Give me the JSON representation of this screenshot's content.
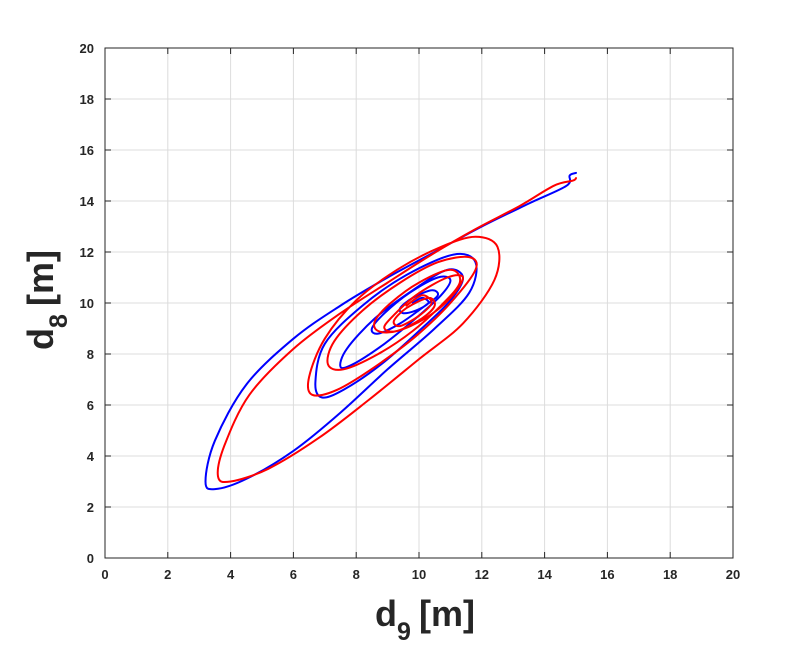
{
  "chart_data": {
    "type": "line",
    "title": "",
    "xlabel": {
      "base": "d",
      "sub": "9",
      "unit": "[m]"
    },
    "ylabel": {
      "base": "d",
      "sub": "8",
      "unit": "[m]"
    },
    "xlim": [
      0,
      20
    ],
    "ylim": [
      0,
      20
    ],
    "xticks": [
      "0",
      "2",
      "4",
      "6",
      "8",
      "10",
      "12",
      "14",
      "16",
      "18",
      "20"
    ],
    "yticks": [
      "0",
      "2",
      "4",
      "6",
      "8",
      "10",
      "12",
      "14",
      "16",
      "18",
      "20"
    ],
    "grid": true,
    "legend": "none",
    "series": [
      {
        "color": "#0000ff",
        "points": [
          [
            15.0,
            15.1
          ],
          [
            14.8,
            15.0
          ],
          [
            14.7,
            14.6
          ],
          [
            13.5,
            13.9
          ],
          [
            12.0,
            13.0
          ],
          [
            10.5,
            12.0
          ],
          [
            9.0,
            11.0
          ],
          [
            7.5,
            9.9
          ],
          [
            6.0,
            8.6
          ],
          [
            4.5,
            6.8
          ],
          [
            3.5,
            4.6
          ],
          [
            3.2,
            3.0
          ],
          [
            3.5,
            2.7
          ],
          [
            4.5,
            3.1
          ],
          [
            6.0,
            4.2
          ],
          [
            7.5,
            5.7
          ],
          [
            9.0,
            7.4
          ],
          [
            10.5,
            9.0
          ],
          [
            11.6,
            10.4
          ],
          [
            11.8,
            11.6
          ],
          [
            11.1,
            11.9
          ],
          [
            9.6,
            11.1
          ],
          [
            8.2,
            9.9
          ],
          [
            7.0,
            8.4
          ],
          [
            6.7,
            6.9
          ],
          [
            6.9,
            6.3
          ],
          [
            7.6,
            6.6
          ],
          [
            8.8,
            7.6
          ],
          [
            10.0,
            8.9
          ],
          [
            11.0,
            10.1
          ],
          [
            11.4,
            11.0
          ],
          [
            10.9,
            11.3
          ],
          [
            9.8,
            10.5
          ],
          [
            8.6,
            9.4
          ],
          [
            7.7,
            8.2
          ],
          [
            7.5,
            7.5
          ],
          [
            7.9,
            7.6
          ],
          [
            8.9,
            8.4
          ],
          [
            9.9,
            9.4
          ],
          [
            10.7,
            10.3
          ],
          [
            11.0,
            10.9
          ],
          [
            10.6,
            11.0
          ],
          [
            9.7,
            10.4
          ],
          [
            8.9,
            9.6
          ],
          [
            8.5,
            9.0
          ],
          [
            8.7,
            8.8
          ],
          [
            9.4,
            9.2
          ],
          [
            10.2,
            9.9
          ],
          [
            10.6,
            10.3
          ],
          [
            10.4,
            10.5
          ],
          [
            9.8,
            10.2
          ],
          [
            9.4,
            9.8
          ],
          [
            9.5,
            9.6
          ],
          [
            9.9,
            9.7
          ],
          [
            10.3,
            10.0
          ],
          [
            10.1,
            10.2
          ],
          [
            9.8,
            10.0
          ]
        ]
      },
      {
        "color": "#ff0000",
        "points": [
          [
            15.0,
            14.9
          ],
          [
            14.9,
            14.8
          ],
          [
            14.3,
            14.6
          ],
          [
            13.2,
            13.8
          ],
          [
            11.8,
            12.9
          ],
          [
            10.4,
            11.9
          ],
          [
            9.0,
            10.8
          ],
          [
            7.5,
            9.6
          ],
          [
            6.0,
            8.2
          ],
          [
            4.6,
            6.4
          ],
          [
            3.8,
            4.4
          ],
          [
            3.6,
            3.2
          ],
          [
            4.0,
            3.0
          ],
          [
            5.2,
            3.5
          ],
          [
            6.8,
            4.7
          ],
          [
            8.4,
            6.2
          ],
          [
            10.0,
            7.8
          ],
          [
            11.4,
            9.2
          ],
          [
            12.4,
            10.9
          ],
          [
            12.5,
            12.2
          ],
          [
            11.8,
            12.6
          ],
          [
            10.7,
            12.2
          ],
          [
            9.3,
            11.3
          ],
          [
            8.0,
            10.1
          ],
          [
            7.0,
            8.6
          ],
          [
            6.5,
            7.1
          ],
          [
            6.6,
            6.4
          ],
          [
            7.4,
            6.6
          ],
          [
            8.6,
            7.5
          ],
          [
            9.9,
            8.7
          ],
          [
            11.0,
            10.0
          ],
          [
            11.8,
            11.3
          ],
          [
            11.6,
            11.8
          ],
          [
            10.6,
            11.6
          ],
          [
            9.4,
            10.8
          ],
          [
            8.2,
            9.7
          ],
          [
            7.3,
            8.5
          ],
          [
            7.1,
            7.6
          ],
          [
            7.6,
            7.4
          ],
          [
            8.7,
            8.0
          ],
          [
            9.8,
            8.9
          ],
          [
            10.7,
            9.9
          ],
          [
            11.3,
            10.8
          ],
          [
            11.0,
            11.3
          ],
          [
            10.0,
            10.8
          ],
          [
            9.1,
            10.0
          ],
          [
            8.6,
            9.3
          ],
          [
            8.7,
            8.9
          ],
          [
            9.3,
            8.9
          ],
          [
            10.2,
            9.4
          ],
          [
            11.0,
            10.2
          ],
          [
            11.4,
            11.0
          ],
          [
            10.9,
            11.0
          ],
          [
            9.9,
            10.3
          ],
          [
            9.1,
            9.4
          ],
          [
            8.9,
            9.0
          ],
          [
            9.3,
            8.9
          ],
          [
            10.1,
            9.4
          ],
          [
            10.5,
            9.9
          ],
          [
            10.3,
            10.2
          ],
          [
            9.6,
            9.8
          ],
          [
            9.2,
            9.3
          ],
          [
            9.4,
            9.1
          ],
          [
            10.0,
            9.5
          ],
          [
            10.4,
            10.0
          ],
          [
            10.1,
            10.3
          ],
          [
            9.6,
            9.9
          ]
        ]
      }
    ]
  }
}
